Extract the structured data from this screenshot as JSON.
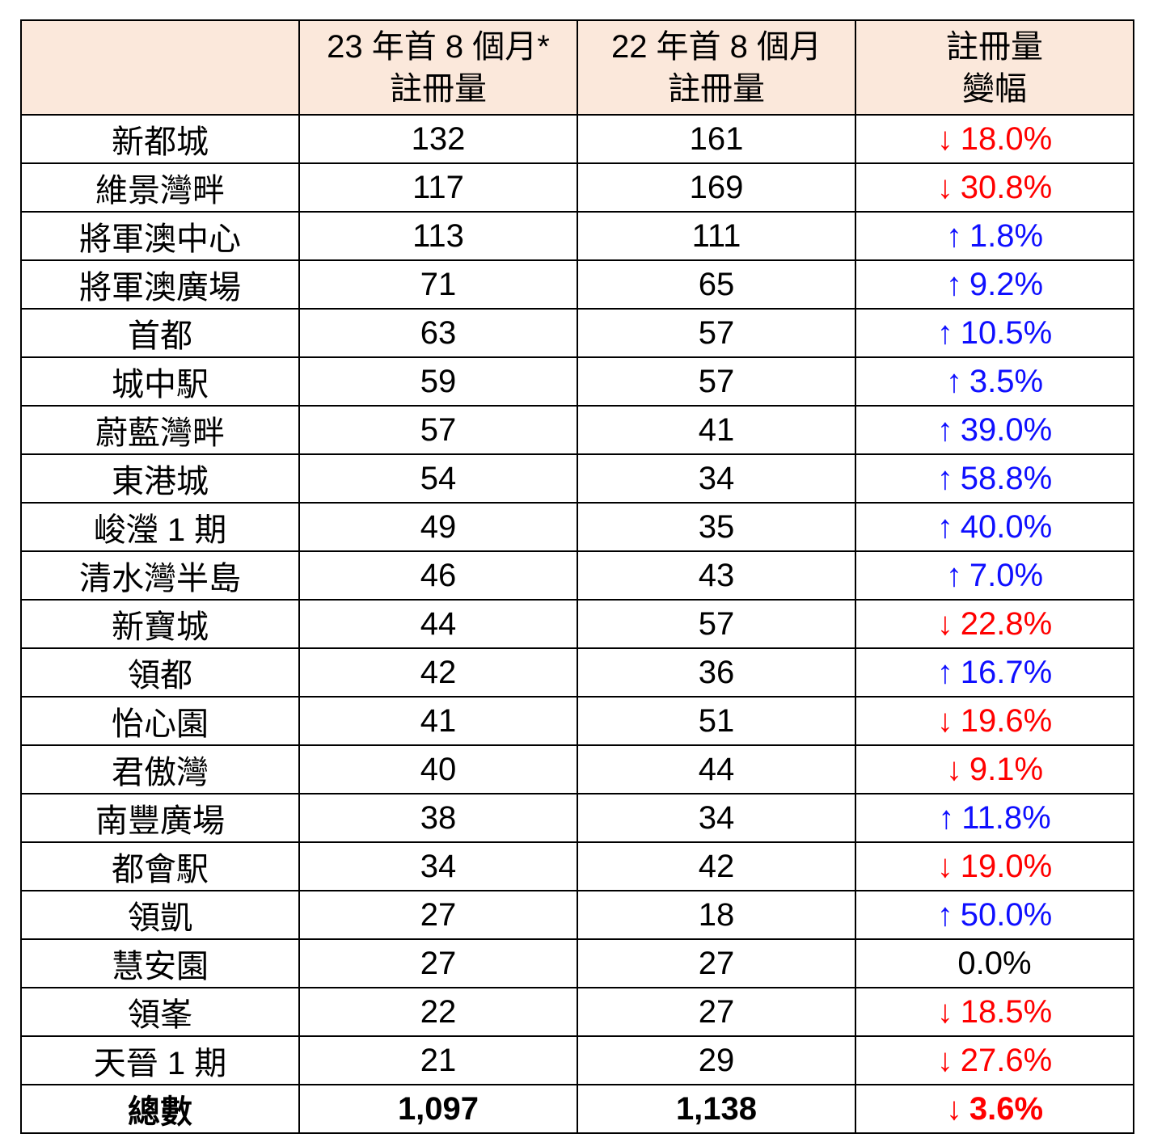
{
  "colors": {
    "header_bg": "#fbe8db",
    "down_red": "#ff0000",
    "up_blue": "#0f0fff",
    "border": "#000000"
  },
  "icons": {
    "up": "↑",
    "down": "↓"
  },
  "table": {
    "header": {
      "col_estate": "",
      "col_y23_line1": "23 年首 8 個月*",
      "col_y23_line2": "註冊量",
      "col_y22_line1": "22 年首 8 個月",
      "col_y22_line2": "註冊量",
      "col_change_line1": "註冊量",
      "col_change_line2": "變幅"
    },
    "rows": [
      {
        "name": "新都城",
        "y23": "132",
        "y22": "161",
        "change": "18.0%",
        "dir": "down"
      },
      {
        "name": "維景灣畔",
        "y23": "117",
        "y22": "169",
        "change": "30.8%",
        "dir": "down"
      },
      {
        "name": "將軍澳中心",
        "y23": "113",
        "y22": "111",
        "change": "1.8%",
        "dir": "up"
      },
      {
        "name": "將軍澳廣場",
        "y23": "71",
        "y22": "65",
        "change": "9.2%",
        "dir": "up"
      },
      {
        "name": "首都",
        "y23": "63",
        "y22": "57",
        "change": "10.5%",
        "dir": "up"
      },
      {
        "name": "城中駅",
        "y23": "59",
        "y22": "57",
        "change": "3.5%",
        "dir": "up"
      },
      {
        "name": "蔚藍灣畔",
        "y23": "57",
        "y22": "41",
        "change": "39.0%",
        "dir": "up"
      },
      {
        "name": "東港城",
        "y23": "54",
        "y22": "34",
        "change": "58.8%",
        "dir": "up"
      },
      {
        "name": "峻瀅 1 期",
        "y23": "49",
        "y22": "35",
        "change": "40.0%",
        "dir": "up"
      },
      {
        "name": "清水灣半島",
        "y23": "46",
        "y22": "43",
        "change": "7.0%",
        "dir": "up"
      },
      {
        "name": "新寶城",
        "y23": "44",
        "y22": "57",
        "change": "22.8%",
        "dir": "down"
      },
      {
        "name": "領都",
        "y23": "42",
        "y22": "36",
        "change": "16.7%",
        "dir": "up"
      },
      {
        "name": "怡心園",
        "y23": "41",
        "y22": "51",
        "change": "19.6%",
        "dir": "down"
      },
      {
        "name": "君傲灣",
        "y23": "40",
        "y22": "44",
        "change": "9.1%",
        "dir": "down"
      },
      {
        "name": "南豐廣場",
        "y23": "38",
        "y22": "34",
        "change": "11.8%",
        "dir": "up"
      },
      {
        "name": "都會駅",
        "y23": "34",
        "y22": "42",
        "change": "19.0%",
        "dir": "down"
      },
      {
        "name": "領凱",
        "y23": "27",
        "y22": "18",
        "change": "50.0%",
        "dir": "up"
      },
      {
        "name": "慧安園",
        "y23": "27",
        "y22": "27",
        "change": "0.0%",
        "dir": "none"
      },
      {
        "name": "領峯",
        "y23": "22",
        "y22": "27",
        "change": "18.5%",
        "dir": "down"
      },
      {
        "name": "天晉 1 期",
        "y23": "21",
        "y22": "29",
        "change": "27.6%",
        "dir": "down"
      }
    ],
    "total": {
      "name": "總數",
      "y23": "1,097",
      "y22": "1,138",
      "change": "3.6%",
      "dir": "down"
    }
  }
}
